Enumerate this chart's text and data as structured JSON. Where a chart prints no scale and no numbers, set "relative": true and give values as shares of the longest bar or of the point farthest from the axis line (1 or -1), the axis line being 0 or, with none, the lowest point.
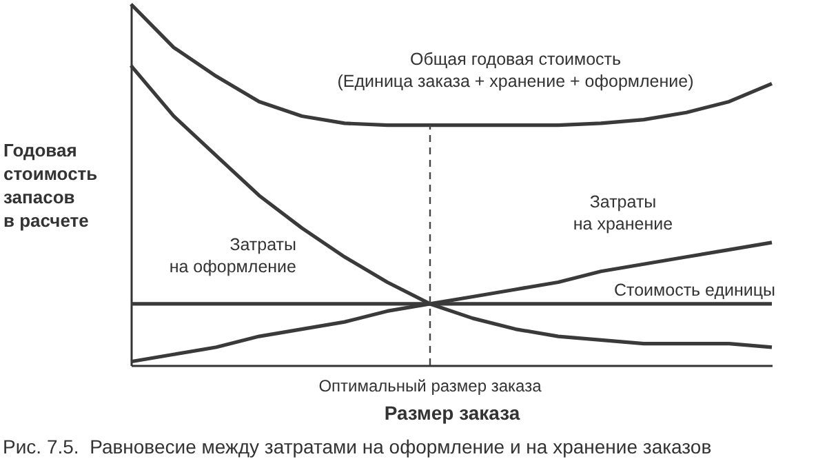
{
  "chart_data": {
    "type": "line",
    "relative": true,
    "xlabel": "Размер заказа",
    "ylabel": "Годовая\nстоимость\nзапасов\nв расчете",
    "categories": [
      null,
      null,
      null,
      null,
      null,
      null,
      null,
      null,
      null,
      null,
      null,
      null,
      null,
      null,
      null,
      null
    ],
    "series": [
      {
        "name": "Общая годовая стоимость\n(Единица заказа + хранение + оформление)",
        "color": "#3a3a3a",
        "values": [
          1,
          0.88,
          0.8,
          0.73,
          0.69,
          0.67,
          0.665,
          0.665,
          0.665,
          0.665,
          0.665,
          0.67,
          0.68,
          0.7,
          0.73,
          0.78
        ]
      },
      {
        "name": "Затраты\nна оформление",
        "color": "#3a3a3a",
        "values": [
          0.83,
          0.69,
          0.58,
          0.47,
          0.38,
          0.3,
          0.23,
          0.17,
          0.13,
          0.1,
          0.08,
          0.07,
          0.06,
          0.06,
          0.06,
          0.05
        ]
      },
      {
        "name": "Затраты\nна хранение",
        "color": "#3a3a3a",
        "values": [
          0.01,
          0.03,
          0.05,
          0.08,
          0.1,
          0.12,
          0.15,
          0.17,
          0.19,
          0.21,
          0.23,
          0.26,
          0.28,
          0.3,
          0.32,
          0.34
        ]
      },
      {
        "name": "Стоимость единицы",
        "color": "#3a3a3a",
        "values": [
          0.17,
          0.17,
          0.17,
          0.17,
          0.17,
          0.17,
          0.17,
          0.17,
          0.17,
          0.17,
          0.17,
          0.17,
          0.17,
          0.17,
          0.17,
          0.17
        ]
      }
    ],
    "annotations": [
      "Оптимальный размер заказа",
      "Рис. 7.5.  Равновесие между затратами на оформление и на хранение заказов"
    ]
  }
}
